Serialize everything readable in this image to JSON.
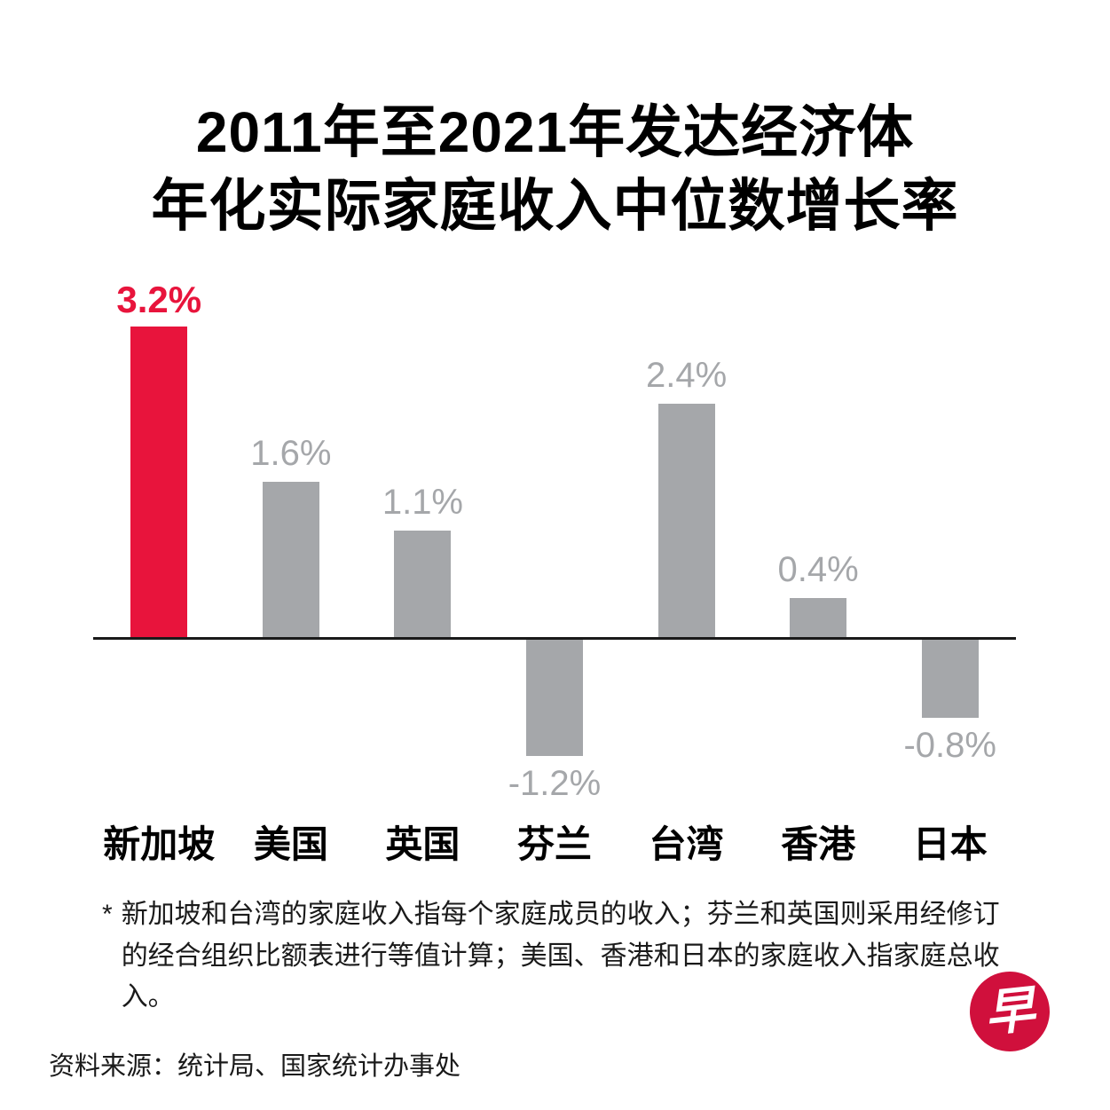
{
  "title": {
    "line1": "2011年至2021年发达经济体",
    "line2": "年化实际家庭收入中位数增长率"
  },
  "chart_data": {
    "type": "bar",
    "title": "2011年至2021年发达经济体年化实际家庭收入中位数增长率",
    "categories": [
      "新加坡",
      "美国",
      "英国",
      "芬兰",
      "台湾",
      "香港",
      "日本"
    ],
    "values": [
      3.2,
      1.6,
      1.1,
      -1.2,
      2.4,
      0.4,
      -0.8
    ],
    "labels": [
      "3.2%",
      "1.6%",
      "1.1%",
      "-1.2%",
      "2.4%",
      "0.4%",
      "-0.8%"
    ],
    "unit": "%",
    "highlight_index": 0,
    "highlight_color": "#e8143c",
    "bar_color": "#a5a7aa",
    "value_label_color": "#a5a7aa",
    "highlight_label_color": "#e8143c",
    "axis_color": "#1a1a1a",
    "grid": false,
    "legend": "none",
    "ylim": [
      -1.6,
      3.6
    ]
  },
  "footnote": {
    "marker": "*",
    "text": "新加坡和台湾的家庭收入指每个家庭成员的收入；芬兰和英国则采用经修订的经合组织比额表进行等值计算；美国、香港和日本的家庭收入指家庭总收入。"
  },
  "source": {
    "text": "资料来源：统计局、国家统计办事处"
  },
  "logo": {
    "char": "早"
  }
}
